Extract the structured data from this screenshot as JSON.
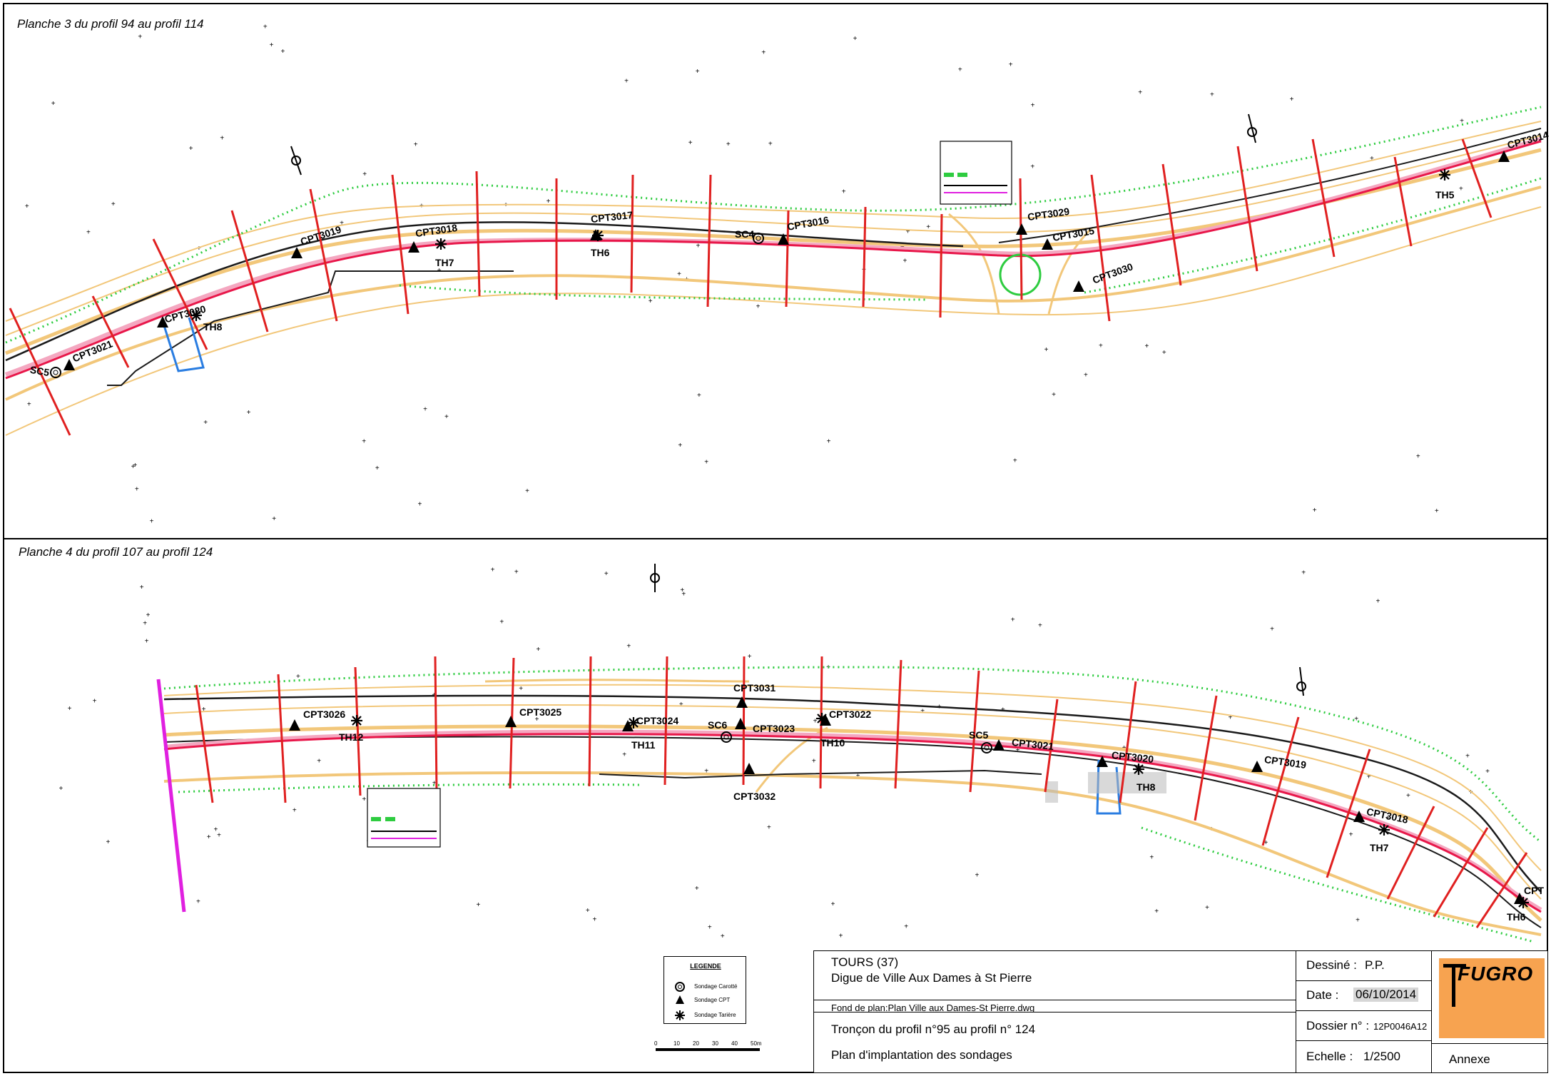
{
  "plan3": {
    "title": "Planche 3 du profil 94 au profil 114",
    "points": [
      {
        "label": "CPT3021",
        "type": "cpt"
      },
      {
        "label": "SC5",
        "type": "carotte"
      },
      {
        "label": "CPT3020",
        "type": "cpt"
      },
      {
        "label": "TH8",
        "type": "tariere"
      },
      {
        "label": "CPT3019",
        "type": "cpt"
      },
      {
        "label": "CPT3018",
        "type": "cpt"
      },
      {
        "label": "TH7",
        "type": "tariere"
      },
      {
        "label": "CPT3017",
        "type": "cpt"
      },
      {
        "label": "TH6",
        "type": "tariere"
      },
      {
        "label": "SC4",
        "type": "carotte"
      },
      {
        "label": "CPT3016",
        "type": "cpt"
      },
      {
        "label": "CPT3029",
        "type": "cpt"
      },
      {
        "label": "CPT3015",
        "type": "cpt"
      },
      {
        "label": "CPT3030",
        "type": "cpt"
      },
      {
        "label": "TH5",
        "type": "tariere"
      },
      {
        "label": "CPT3014",
        "type": "cpt"
      }
    ]
  },
  "plan4": {
    "title": "Planche 4 du profil 107 au profil 124",
    "points": [
      {
        "label": "CPT3026",
        "type": "cpt"
      },
      {
        "label": "TH12",
        "type": "tariere"
      },
      {
        "label": "CPT3025",
        "type": "cpt"
      },
      {
        "label": "CPT3024",
        "type": "cpt"
      },
      {
        "label": "TH11",
        "type": "tariere"
      },
      {
        "label": "SC6",
        "type": "carotte"
      },
      {
        "label": "CPT3031",
        "type": "cpt"
      },
      {
        "label": "CPT3023",
        "type": "cpt"
      },
      {
        "label": "CPT3032",
        "type": "cpt"
      },
      {
        "label": "CPT3022",
        "type": "cpt"
      },
      {
        "label": "TH10",
        "type": "tariere"
      },
      {
        "label": "SC5",
        "type": "carotte"
      },
      {
        "label": "CPT3021",
        "type": "cpt"
      },
      {
        "label": "CPT3020",
        "type": "cpt"
      },
      {
        "label": "TH8",
        "type": "tariere"
      },
      {
        "label": "CPT3019",
        "type": "cpt"
      },
      {
        "label": "CPT3018",
        "type": "cpt"
      },
      {
        "label": "TH7",
        "type": "tariere"
      },
      {
        "label": "CPT",
        "type": "cpt"
      },
      {
        "label": "TH6",
        "type": "tariere"
      }
    ]
  },
  "legend": {
    "title": "LEGENDE",
    "items": [
      {
        "label": "Sondage Carotté",
        "icon": "circle-icon"
      },
      {
        "label": "Sondage CPT",
        "icon": "triangle-icon"
      },
      {
        "label": "Sondage Tarière",
        "icon": "asterisk-icon"
      }
    ]
  },
  "scale_bar": {
    "ticks": [
      "0",
      "10",
      "20",
      "30",
      "40",
      "50m"
    ]
  },
  "title_block": {
    "location": "TOURS (37)",
    "project": "Digue de Ville Aux Dames à St Pierre",
    "background": "Fond de plan:Plan Ville aux Dames-St Pierre.dwg",
    "section": "Tronçon du profil n°95 au profil n° 124",
    "drawing_title": "Plan d'implantation des sondages",
    "drawn_by_label": "Dessiné :",
    "drawn_by": "P.P.",
    "date_label": "Date :",
    "date": "06/10/2014",
    "dossier_label": "Dossier n° :",
    "dossier": "12P0046A12",
    "scale_label": "Echelle :",
    "scale": "1/2500",
    "annex": "Annexe",
    "company": "FUGRO"
  },
  "colors": {
    "axis": "#e8174a",
    "profile": "#e02020",
    "terrain": "#f2c77a",
    "vegetation": "#2ecc40",
    "boundary": "#1a1a1a",
    "limit": "#e020e0",
    "fugro_orange": "#f7a350",
    "blue": "#2a7de1"
  }
}
